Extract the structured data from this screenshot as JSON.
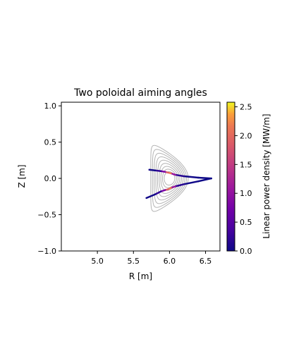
{
  "chart_data": {
    "type": "line",
    "title": "Two poloidal aiming angles",
    "xlabel": "R [m]",
    "ylabel": "Z [m]",
    "xlim": [
      4.5,
      6.7
    ],
    "ylim": [
      -1.0,
      1.05
    ],
    "xticks": [
      5.0,
      5.5,
      6.0,
      6.5
    ],
    "xtick_labels": [
      "5.0",
      "5.5",
      "6.0",
      "6.5"
    ],
    "yticks": [
      -1.0,
      -0.5,
      0.0,
      0.5,
      1.0
    ],
    "ytick_labels": [
      "−1.0",
      "−0.5",
      "0.0",
      "0.5",
      "1.0"
    ],
    "grid": false,
    "flux_contours": {
      "color": "#b4b4b4",
      "magnetic_axis": [
        6.0,
        0.0
      ],
      "count": 9
    },
    "series": [
      {
        "points": [
          {
            "r": 6.58,
            "z": 0.0,
            "p": 0.0
          },
          {
            "r": 6.4,
            "z": 0.01,
            "p": 0.0
          },
          {
            "r": 6.2,
            "z": 0.03,
            "p": 0.05
          },
          {
            "r": 6.08,
            "z": 0.05,
            "p": 0.3
          },
          {
            "r": 6.02,
            "z": 0.07,
            "p": 1.8
          },
          {
            "r": 5.98,
            "z": 0.08,
            "p": 2.55
          },
          {
            "r": 5.94,
            "z": 0.09,
            "p": 1.2
          },
          {
            "r": 5.88,
            "z": 0.1,
            "p": 0.4
          },
          {
            "r": 5.8,
            "z": 0.11,
            "p": 0.05
          },
          {
            "r": 5.72,
            "z": 0.12,
            "p": 0.0
          }
        ]
      },
      {
        "points": [
          {
            "r": 6.58,
            "z": 0.0,
            "p": 0.0
          },
          {
            "r": 6.4,
            "z": -0.04,
            "p": 0.0
          },
          {
            "r": 6.2,
            "z": -0.08,
            "p": 0.05
          },
          {
            "r": 6.08,
            "z": -0.11,
            "p": 0.3
          },
          {
            "r": 6.02,
            "z": -0.13,
            "p": 1.8
          },
          {
            "r": 5.98,
            "z": -0.15,
            "p": 2.55
          },
          {
            "r": 5.94,
            "z": -0.16,
            "p": 1.2
          },
          {
            "r": 5.88,
            "z": -0.18,
            "p": 0.4
          },
          {
            "r": 5.8,
            "z": -0.22,
            "p": 0.05
          },
          {
            "r": 5.68,
            "z": -0.27,
            "p": 0.0
          }
        ]
      }
    ],
    "colorbar": {
      "label": "Linear power density [MW/m]",
      "min": 0.0,
      "max": 2.58,
      "ticks": [
        0.0,
        0.5,
        1.0,
        1.5,
        2.0,
        2.5
      ],
      "tick_labels": [
        "0.0",
        "0.5",
        "1.0",
        "1.5",
        "2.0",
        "2.5"
      ],
      "colormap": "plasma"
    }
  }
}
